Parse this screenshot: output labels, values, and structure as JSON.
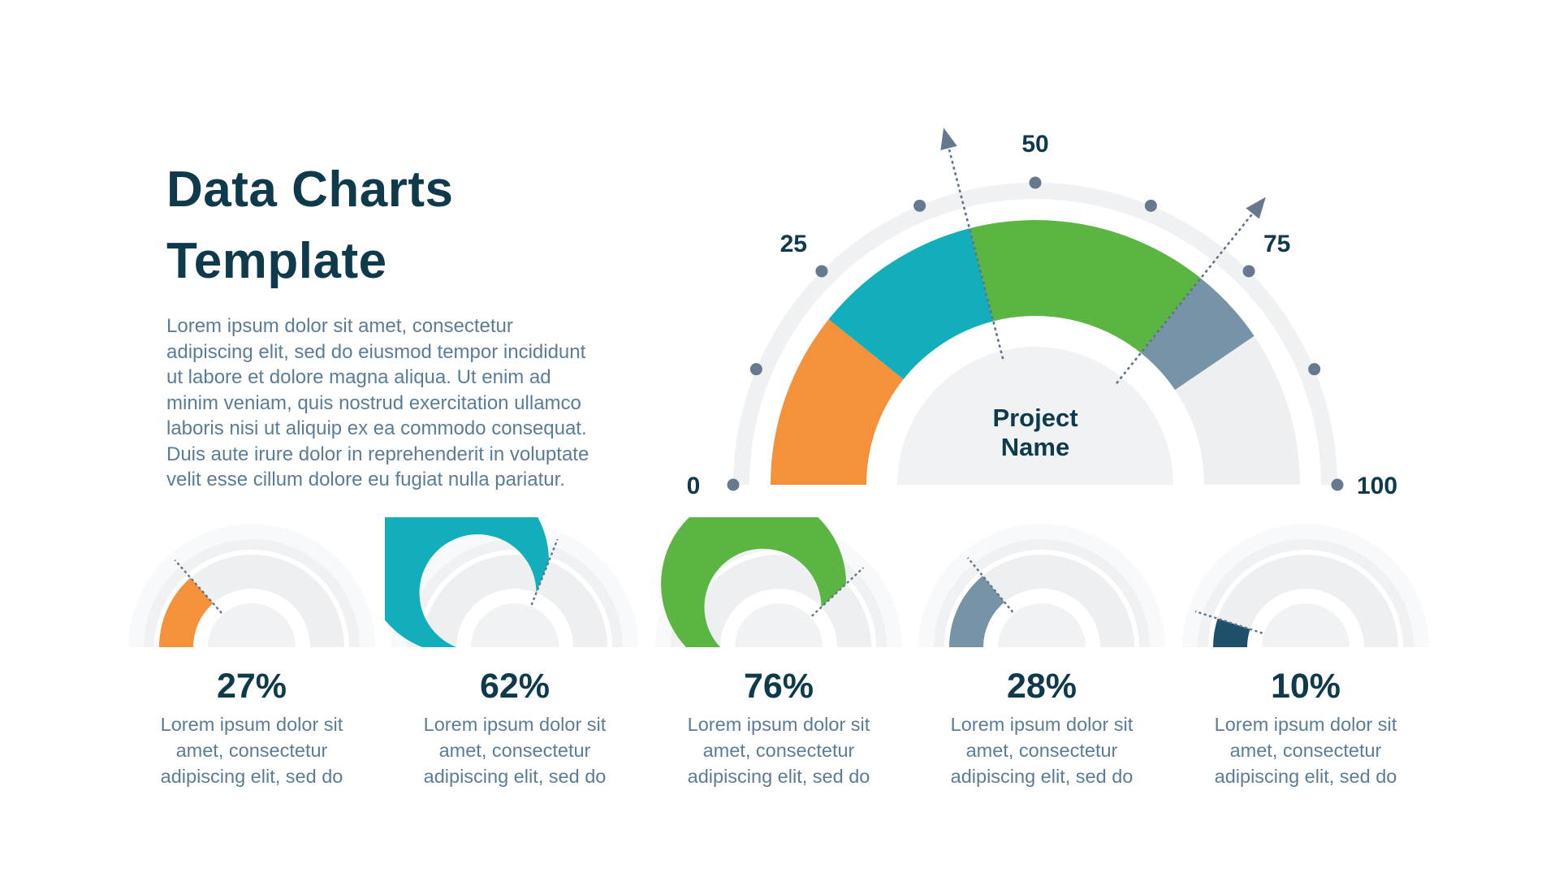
{
  "header": {
    "title": "Data Charts\nTemplate",
    "description": "Lorem ipsum dolor sit amet, consectetur\nadipiscing elit, sed do eiusmod tempor incididunt\nut labore et dolore magna aliqua. Ut enim ad\nminim veniam, quis nostrud exercitation ullamco\nlaboris nisi ut aliquip ex ea commodo consequat.\nDuis aute irure dolor in reprehenderit in voluptate\nvelit esse cillum dolore eu fugiat nulla pariatur."
  },
  "colors": {
    "title_text": "#0E3A4C",
    "body_text": "#5A7D97",
    "value_text": "#0E3A4C",
    "orange": "#F4913A",
    "teal": "#13AEBB",
    "green": "#5BB542",
    "slate": "#7793A7",
    "navy": "#1E506B",
    "track": "#EDEFF1",
    "disc": "#F1F2F4",
    "ring": "#F0F1F3",
    "halo": "#F8F9FB",
    "dot": "#66798E",
    "needle": "#5E7488",
    "arrow": "#64798E"
  },
  "chart_data": [
    {
      "id": "project-gauge",
      "type": "gauge",
      "center_label": "Project\nName",
      "min": 0,
      "max": 100,
      "tick_labels": [
        "0",
        "25",
        "50",
        "75",
        "100"
      ],
      "tick_values": [
        0,
        25,
        50,
        75,
        100
      ],
      "dot_step": 12.5,
      "segments": [
        {
          "from": 0,
          "to": 21.5,
          "color_key": "orange"
        },
        {
          "from": 21.5,
          "to": 42,
          "color_key": "teal"
        },
        {
          "from": 42,
          "to": 71.5,
          "color_key": "green"
        },
        {
          "from": 71.5,
          "to": 81,
          "color_key": "slate"
        }
      ],
      "needles": [
        42,
        71.5
      ]
    },
    {
      "id": "mini-gauge-1",
      "type": "gauge",
      "value": 27,
      "value_label": "27%",
      "color_key": "orange",
      "description": "Lorem ipsum dolor sit\namet, consectetur\nadipiscing elit, sed do"
    },
    {
      "id": "mini-gauge-2",
      "type": "gauge",
      "value": 62,
      "value_label": "62%",
      "color_key": "teal",
      "description": "Lorem ipsum dolor sit\namet, consectetur\nadipiscing elit, sed do"
    },
    {
      "id": "mini-gauge-3",
      "type": "gauge",
      "value": 76,
      "value_label": "76%",
      "color_key": "green",
      "description": "Lorem ipsum dolor sit\namet, consectetur\nadipiscing elit, sed do"
    },
    {
      "id": "mini-gauge-4",
      "type": "gauge",
      "value": 28,
      "value_label": "28%",
      "color_key": "slate",
      "description": "Lorem ipsum dolor sit\namet, consectetur\nadipiscing elit, sed do"
    },
    {
      "id": "mini-gauge-5",
      "type": "gauge",
      "value": 10,
      "value_label": "10%",
      "color_key": "navy",
      "description": "Lorem ipsum dolor sit\namet, consectetur\nadipiscing elit, sed do"
    }
  ]
}
